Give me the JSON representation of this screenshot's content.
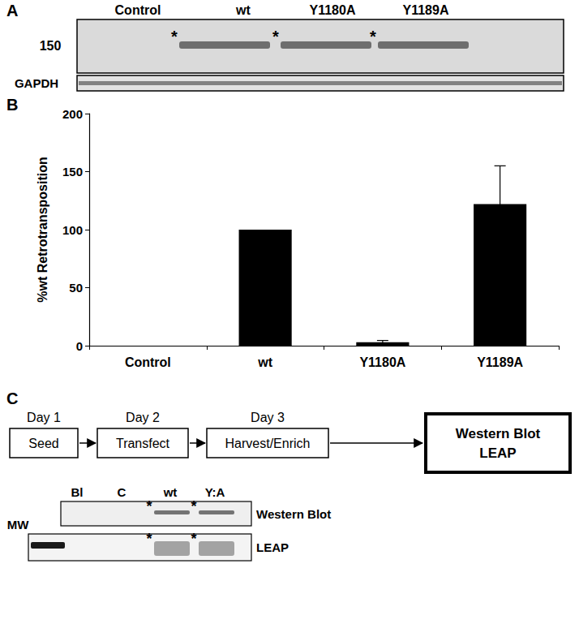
{
  "panel_labels": [
    "A",
    "B",
    "C"
  ],
  "panel_a": {
    "lanes": [
      "Control",
      "wt",
      "Y1180A",
      "Y1189A"
    ],
    "bands": [
      false,
      true,
      true,
      true
    ],
    "size_label": "150",
    "loading_label": "GAPDH",
    "band_mark": "*"
  },
  "chart_data": {
    "type": "bar",
    "categories": [
      "Control",
      "wt",
      "Y1180A",
      "Y1189A"
    ],
    "values": [
      0,
      100,
      3,
      122
    ],
    "errors": [
      null,
      null,
      1.5,
      33
    ],
    "color": "#000000",
    "ylabel": "%wt Retrotransposition",
    "ylim": [
      0,
      200
    ],
    "yticks": [
      0,
      50,
      100,
      150,
      200
    ],
    "grid": false
  },
  "panel_c": {
    "steps": [
      {
        "day": "Day 1",
        "label": "Seed"
      },
      {
        "day": "Day 2",
        "label": "Transfect"
      },
      {
        "day": "Day 3",
        "label": "Harvest/Enrich"
      }
    ],
    "readout": [
      "Western Blot",
      "LEAP"
    ],
    "lanes": [
      "Bl",
      "C",
      "wt",
      "Y:A"
    ],
    "bands": [
      false,
      false,
      true,
      true
    ],
    "blots": [
      "Western Blot",
      "LEAP"
    ],
    "ladder_label": "MW",
    "band_mark": "*"
  }
}
